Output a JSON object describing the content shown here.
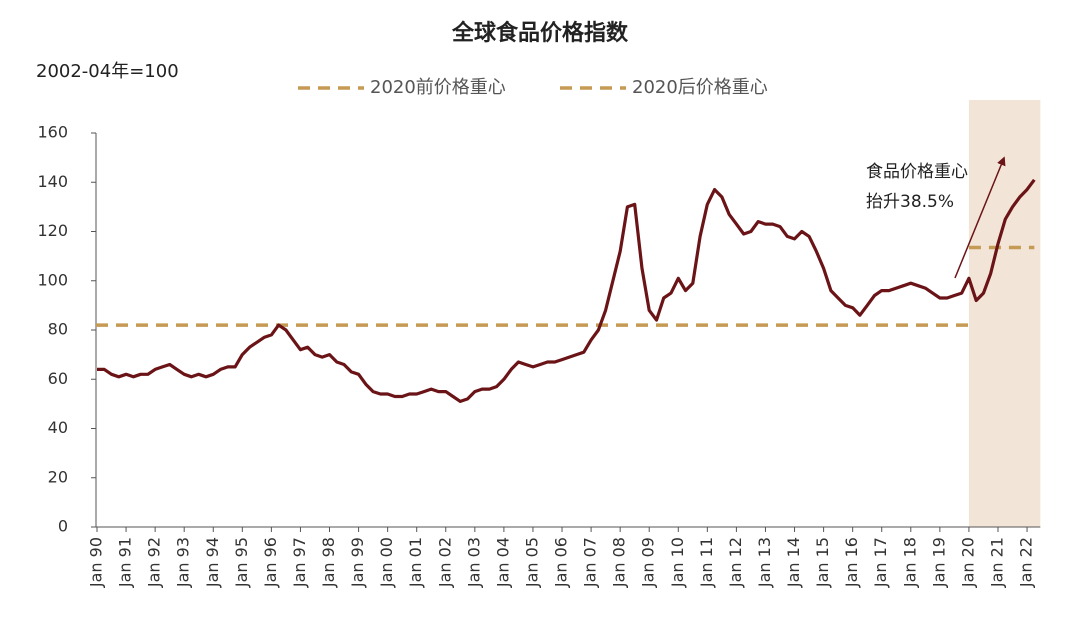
{
  "chart_data": {
    "type": "line",
    "title": "全球食品价格指数",
    "unit_label": "2002-04年=100",
    "color": "#6b1417",
    "categories": [
      "Jan 90",
      null,
      null,
      null,
      "Jan 91",
      null,
      null,
      null,
      "Jan 92",
      null,
      null,
      null,
      "Jan 93",
      null,
      null,
      null,
      "Jan 94",
      null,
      null,
      null,
      "Jan 95",
      null,
      null,
      null,
      "Jan 96",
      null,
      null,
      null,
      "Jan 97",
      null,
      null,
      null,
      "Jan 98",
      null,
      null,
      null,
      "Jan 99",
      null,
      null,
      null,
      "Jan 00",
      null,
      null,
      null,
      "Jan 01",
      null,
      null,
      null,
      "Jan 02",
      null,
      null,
      null,
      "Jan 03",
      null,
      null,
      null,
      "Jan 04",
      null,
      null,
      null,
      "Jan 05",
      null,
      null,
      null,
      "Jan 06",
      null,
      null,
      null,
      "Jan 07",
      null,
      null,
      null,
      "Jan 08",
      null,
      null,
      null,
      "Jan 09",
      null,
      null,
      null,
      "Jan 10",
      null,
      null,
      null,
      "Jan 11",
      null,
      null,
      null,
      "Jan 12",
      null,
      null,
      null,
      "Jan 13",
      null,
      null,
      null,
      "Jan 14",
      null,
      null,
      null,
      "Jan 15",
      null,
      null,
      null,
      "Jan 16",
      null,
      null,
      null,
      "Jan 17",
      null,
      null,
      null,
      "Jan 18",
      null,
      null,
      null,
      "Jan 19",
      null,
      null,
      null,
      "Jan 20",
      null,
      null,
      null,
      "Jan 21",
      null,
      null,
      null,
      "Jan 22",
      null
    ],
    "values": [
      64,
      64,
      62,
      61,
      62,
      61,
      62,
      62,
      64,
      65,
      66,
      64,
      62,
      61,
      62,
      61,
      62,
      64,
      65,
      65,
      70,
      73,
      75,
      77,
      78,
      82,
      80,
      76,
      72,
      73,
      70,
      69,
      70,
      67,
      66,
      63,
      62,
      58,
      55,
      54,
      54,
      53,
      53,
      54,
      54,
      55,
      56,
      55,
      55,
      53,
      51,
      52,
      55,
      56,
      56,
      57,
      60,
      64,
      67,
      66,
      65,
      66,
      67,
      67,
      68,
      69,
      70,
      71,
      76,
      80,
      88,
      100,
      112,
      130,
      131,
      105,
      88,
      84,
      93,
      95,
      101,
      96,
      99,
      118,
      131,
      137,
      134,
      127,
      123,
      119,
      120,
      124,
      123,
      123,
      122,
      118,
      117,
      120,
      118,
      112,
      105,
      96,
      93,
      90,
      89,
      86,
      90,
      94,
      96,
      96,
      97,
      98,
      99,
      98,
      97,
      95,
      93,
      93,
      94,
      95,
      101,
      92,
      95,
      103,
      115,
      125,
      130,
      134,
      137,
      141
    ],
    "ylim": [
      0,
      160
    ],
    "yticks": [
      0,
      20,
      40,
      60,
      80,
      100,
      120,
      140,
      160
    ],
    "highlight_from": "Jan 20",
    "reference_lines": [
      {
        "name": "2020前价格重心",
        "value": 82,
        "color": "#c59a55"
      },
      {
        "name": "2020后价格重心",
        "value": 113.5,
        "color": "#c59a55"
      }
    ],
    "highlight_color": "#f2e5d7",
    "annotation": [
      "食品价格重心",
      "抬升38.5%"
    ]
  }
}
